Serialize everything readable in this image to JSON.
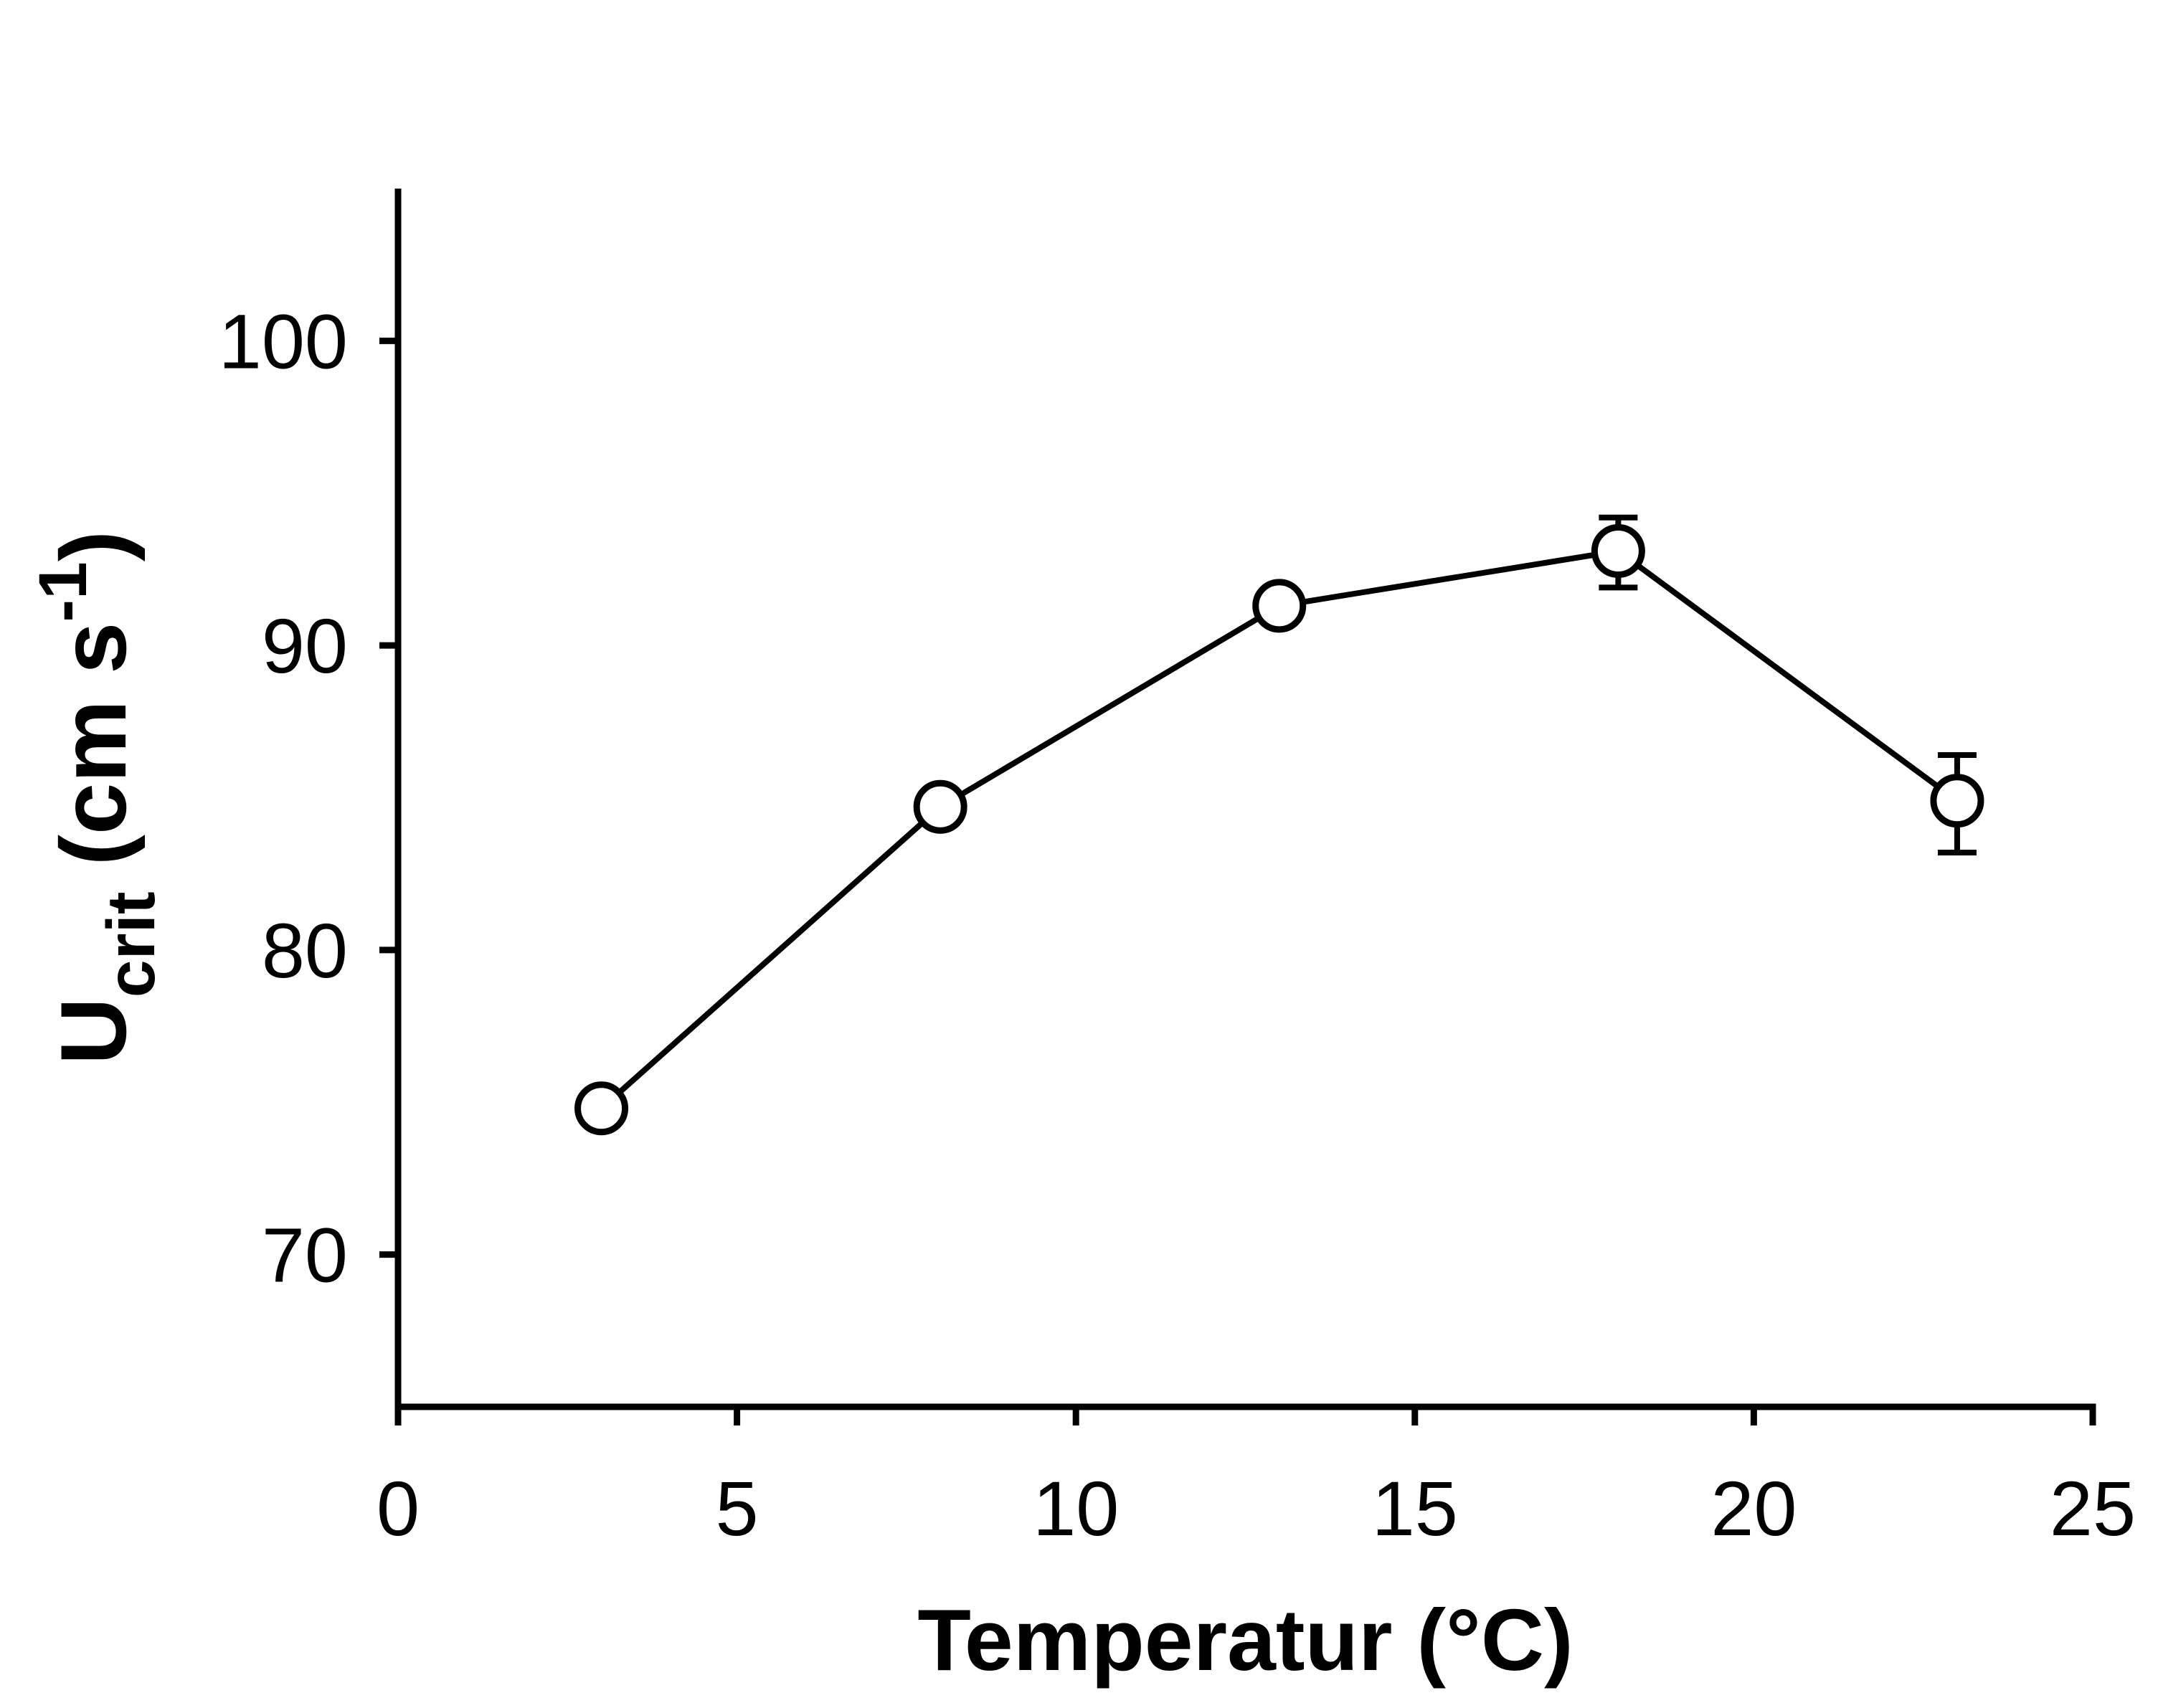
{
  "figure": {
    "background": "#ffffff",
    "ink": "#000000"
  },
  "chart_data": {
    "type": "line",
    "title": "",
    "xlabel": "Temperatur (°C)",
    "ylabel_parts": {
      "base": "U",
      "sub": "crit",
      "mid": " (cm s",
      "sup": "-1",
      "end": ")"
    },
    "x": [
      3,
      8,
      13,
      18,
      23
    ],
    "series": [
      {
        "name": "Ucrit",
        "values": [
          74.8,
          84.7,
          91.3,
          93.1,
          84.9
        ],
        "error_plus": [
          0,
          0,
          0,
          1.1,
          1.5
        ],
        "error_minus": [
          0,
          0,
          0,
          1.2,
          1.7
        ],
        "marker": "open-circle",
        "color": "#000000"
      }
    ],
    "xlim": [
      0,
      25
    ],
    "ylim": [
      65,
      105
    ],
    "x_ticks": [
      0,
      5,
      10,
      15,
      20,
      25
    ],
    "y_ticks": [
      70,
      80,
      90,
      100
    ],
    "grid": false,
    "legend": "none"
  }
}
